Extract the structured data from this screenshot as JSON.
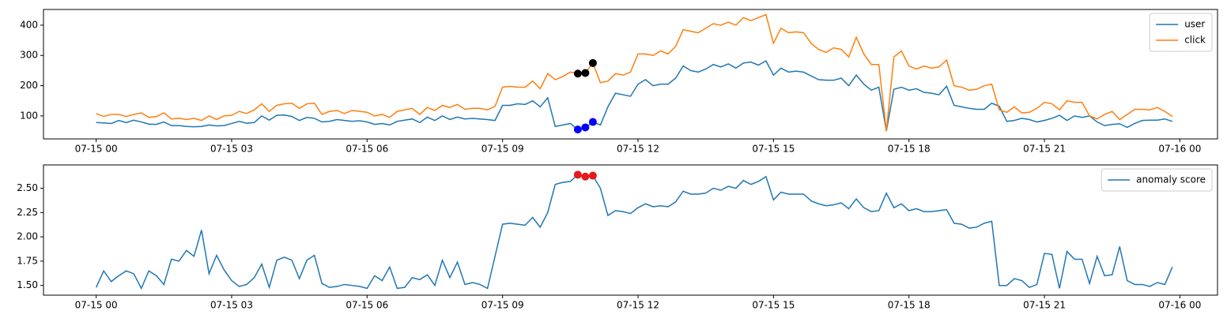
{
  "chart_data": [
    {
      "type": "line",
      "x": [
        0,
        10,
        20,
        30,
        40,
        50,
        60,
        70,
        80,
        90,
        100,
        110,
        120,
        130,
        140,
        150,
        160,
        170,
        180,
        190,
        200,
        210,
        220,
        230,
        240,
        250,
        260,
        270,
        280,
        290,
        300,
        310,
        320,
        330,
        340,
        350,
        360,
        370,
        380,
        390,
        400,
        410,
        420,
        430,
        440,
        450,
        460,
        470,
        480,
        490,
        500,
        510,
        520,
        530,
        540,
        550,
        560,
        570,
        580,
        590,
        600,
        610,
        620,
        630,
        640,
        650,
        660,
        670,
        680,
        690,
        700,
        710,
        720,
        730,
        740,
        750,
        760,
        770,
        780,
        790,
        800,
        810,
        820,
        830,
        840,
        850,
        860,
        870,
        880,
        890,
        900,
        910,
        920,
        930,
        940,
        950,
        960,
        970,
        980,
        990,
        1000,
        1010,
        1020,
        1030,
        1040,
        1050,
        1060,
        1070,
        1080,
        1090,
        1100,
        1110,
        1120,
        1130,
        1140,
        1150,
        1160,
        1170,
        1180,
        1190,
        1200,
        1210,
        1220,
        1230,
        1240,
        1250,
        1260,
        1270,
        1280,
        1290,
        1300,
        1310,
        1320,
        1330,
        1340,
        1350,
        1360,
        1370,
        1380,
        1390,
        1400,
        1410,
        1420,
        1430
      ],
      "series": [
        {
          "name": "user",
          "color": "#1f77b4",
          "values": [
            78,
            77,
            75,
            85,
            78,
            86,
            80,
            73,
            72,
            80,
            68,
            68,
            65,
            64,
            65,
            70,
            67,
            68,
            75,
            82,
            76,
            78,
            100,
            86,
            102,
            103,
            98,
            85,
            95,
            92,
            80,
            82,
            88,
            85,
            82,
            84,
            80,
            72,
            75,
            70,
            82,
            86,
            90,
            78,
            96,
            85,
            100,
            88,
            96,
            90,
            92,
            90,
            88,
            85,
            135,
            135,
            140,
            138,
            150,
            130,
            160,
            65,
            70,
            75,
            55,
            62,
            80,
            70,
            130,
            175,
            170,
            165,
            205,
            220,
            200,
            205,
            205,
            225,
            265,
            250,
            245,
            255,
            270,
            262,
            272,
            258,
            275,
            278,
            268,
            282,
            235,
            258,
            245,
            248,
            245,
            232,
            220,
            218,
            218,
            225,
            200,
            235,
            205,
            185,
            195,
            50,
            188,
            195,
            185,
            190,
            178,
            175,
            170,
            198,
            135,
            130,
            125,
            122,
            122,
            142,
            132,
            82,
            85,
            92,
            88,
            80,
            85,
            92,
            102,
            85,
            100,
            95,
            100,
            80,
            68,
            72,
            74,
            62,
            75,
            85,
            86,
            86,
            90,
            82
          ]
        },
        {
          "name": "click",
          "color": "#ff7f0e",
          "values": [
            108,
            98,
            105,
            105,
            98,
            105,
            110,
            95,
            98,
            110,
            90,
            92,
            88,
            92,
            85,
            100,
            88,
            100,
            102,
            115,
            108,
            120,
            140,
            115,
            135,
            140,
            142,
            125,
            140,
            142,
            105,
            115,
            118,
            108,
            118,
            115,
            112,
            100,
            105,
            95,
            115,
            120,
            125,
            105,
            128,
            118,
            135,
            128,
            138,
            122,
            125,
            125,
            120,
            132,
            195,
            198,
            195,
            195,
            215,
            190,
            240,
            220,
            230,
            245,
            240,
            242,
            275,
            210,
            215,
            240,
            235,
            245,
            305,
            305,
            300,
            315,
            305,
            330,
            385,
            380,
            375,
            390,
            405,
            400,
            410,
            400,
            425,
            415,
            425,
            435,
            340,
            390,
            375,
            378,
            375,
            340,
            320,
            310,
            325,
            320,
            295,
            360,
            305,
            270,
            270,
            50,
            295,
            315,
            265,
            255,
            265,
            258,
            262,
            285,
            200,
            195,
            185,
            188,
            200,
            205,
            120,
            112,
            130,
            110,
            112,
            125,
            145,
            140,
            120,
            150,
            145,
            145,
            100,
            90,
            105,
            115,
            88,
            105,
            122,
            122,
            120,
            128,
            115,
            98
          ]
        }
      ],
      "anomalies": [
        {
          "color": "#0000ff",
          "x": [
            640,
            650,
            660
          ],
          "values": [
            55,
            62,
            80
          ]
        },
        {
          "color": "#000000",
          "x": [
            640,
            650,
            660
          ],
          "values": [
            240,
            242,
            275
          ]
        }
      ],
      "xlim": [
        -70,
        1490
      ],
      "xticks": [
        {
          "value": 0,
          "label": "07-15 00"
        },
        {
          "value": 180,
          "label": "07-15 03"
        },
        {
          "value": 360,
          "label": "07-15 06"
        },
        {
          "value": 540,
          "label": "07-15 09"
        },
        {
          "value": 720,
          "label": "07-15 12"
        },
        {
          "value": 900,
          "label": "07-15 15"
        },
        {
          "value": 1080,
          "label": "07-15 18"
        },
        {
          "value": 1260,
          "label": "07-15 21"
        },
        {
          "value": 1440,
          "label": "07-16 00"
        }
      ],
      "ylim": [
        24,
        452
      ],
      "yticks": [
        100,
        200,
        300,
        400
      ],
      "legend": "upper right"
    },
    {
      "type": "line",
      "x": [
        0,
        10,
        20,
        30,
        40,
        50,
        60,
        70,
        80,
        90,
        100,
        110,
        120,
        130,
        140,
        150,
        160,
        170,
        180,
        190,
        200,
        210,
        220,
        230,
        240,
        250,
        260,
        270,
        280,
        290,
        300,
        310,
        320,
        330,
        340,
        350,
        360,
        370,
        380,
        390,
        400,
        410,
        420,
        430,
        440,
        450,
        460,
        470,
        480,
        490,
        500,
        510,
        520,
        530,
        540,
        550,
        560,
        570,
        580,
        590,
        600,
        610,
        620,
        630,
        640,
        650,
        660,
        670,
        680,
        690,
        700,
        710,
        720,
        730,
        740,
        750,
        760,
        770,
        780,
        790,
        800,
        810,
        820,
        830,
        840,
        850,
        860,
        870,
        880,
        890,
        900,
        910,
        920,
        930,
        940,
        950,
        960,
        970,
        980,
        990,
        1000,
        1010,
        1020,
        1030,
        1040,
        1050,
        1060,
        1070,
        1080,
        1090,
        1100,
        1110,
        1120,
        1130,
        1140,
        1150,
        1160,
        1170,
        1180,
        1190,
        1200,
        1210,
        1220,
        1230,
        1240,
        1250,
        1260,
        1270,
        1280,
        1290,
        1300,
        1310,
        1320,
        1330,
        1340,
        1350,
        1360,
        1370,
        1380,
        1390,
        1400,
        1410,
        1420,
        1430
      ],
      "series": [
        {
          "name": "anomaly score",
          "color": "#1f77b4",
          "values": [
            1.48,
            1.65,
            1.54,
            1.6,
            1.65,
            1.62,
            1.47,
            1.65,
            1.6,
            1.51,
            1.77,
            1.75,
            1.86,
            1.8,
            2.07,
            1.62,
            1.81,
            1.66,
            1.55,
            1.49,
            1.51,
            1.58,
            1.72,
            1.48,
            1.76,
            1.79,
            1.76,
            1.57,
            1.76,
            1.81,
            1.52,
            1.48,
            1.49,
            1.51,
            1.5,
            1.49,
            1.47,
            1.6,
            1.55,
            1.69,
            1.47,
            1.48,
            1.58,
            1.56,
            1.61,
            1.5,
            1.76,
            1.58,
            1.74,
            1.51,
            1.53,
            1.51,
            1.47,
            1.8,
            2.13,
            2.14,
            2.13,
            2.12,
            2.2,
            2.1,
            2.25,
            2.54,
            2.56,
            2.57,
            2.64,
            2.62,
            2.63,
            2.5,
            2.22,
            2.27,
            2.26,
            2.24,
            2.3,
            2.34,
            2.31,
            2.32,
            2.31,
            2.36,
            2.47,
            2.44,
            2.44,
            2.45,
            2.5,
            2.48,
            2.52,
            2.5,
            2.58,
            2.54,
            2.57,
            2.62,
            2.38,
            2.46,
            2.44,
            2.44,
            2.44,
            2.37,
            2.34,
            2.32,
            2.33,
            2.35,
            2.29,
            2.39,
            2.3,
            2.26,
            2.27,
            2.45,
            2.3,
            2.34,
            2.27,
            2.29,
            2.26,
            2.26,
            2.27,
            2.28,
            2.14,
            2.13,
            2.09,
            2.1,
            2.14,
            2.16,
            1.5,
            1.5,
            1.57,
            1.55,
            1.48,
            1.51,
            1.83,
            1.82,
            1.47,
            1.85,
            1.77,
            1.77,
            1.52,
            1.8,
            1.6,
            1.61,
            1.9,
            1.55,
            1.51,
            1.51,
            1.49,
            1.53,
            1.51,
            1.69
          ]
        }
      ],
      "anomalies": [
        {
          "color": "#e31a1c",
          "x": [
            640,
            650,
            660
          ],
          "values": [
            2.64,
            2.62,
            2.63
          ]
        }
      ],
      "xlim": [
        -70,
        1490
      ],
      "xticks": [
        {
          "value": 0,
          "label": "07-15 00"
        },
        {
          "value": 180,
          "label": "07-15 03"
        },
        {
          "value": 360,
          "label": "07-15 06"
        },
        {
          "value": 540,
          "label": "07-15 09"
        },
        {
          "value": 720,
          "label": "07-15 12"
        },
        {
          "value": 900,
          "label": "07-15 15"
        },
        {
          "value": 1080,
          "label": "07-15 18"
        },
        {
          "value": 1260,
          "label": "07-15 21"
        },
        {
          "value": 1440,
          "label": "07-16 00"
        }
      ],
      "ylim": [
        1.4,
        2.74
      ],
      "yticks": [
        {
          "value": 1.5,
          "label": "1.50"
        },
        {
          "value": 1.75,
          "label": "1.75"
        },
        {
          "value": 2.0,
          "label": "2.00"
        },
        {
          "value": 2.25,
          "label": "2.25"
        },
        {
          "value": 2.5,
          "label": "2.50"
        }
      ],
      "legend": "upper right"
    }
  ]
}
